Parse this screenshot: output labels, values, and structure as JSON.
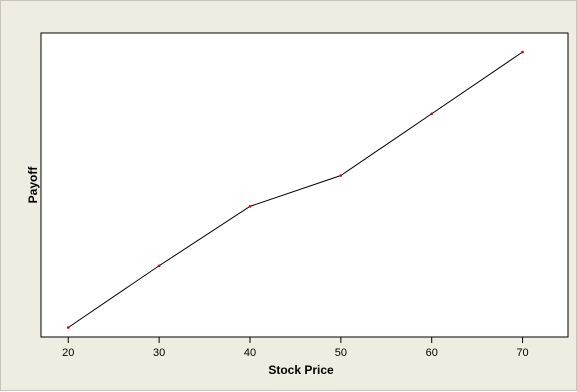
{
  "chart_data": {
    "type": "line",
    "title": "",
    "xlabel": "Stock Price",
    "ylabel": "Payoff",
    "x": [
      20,
      30,
      40,
      50,
      60,
      70
    ],
    "series": [
      {
        "values": [
          2.0,
          15.0,
          27.5,
          34.0,
          47.0,
          60.0
        ],
        "color": "#000000",
        "marker_color": "#cc0000"
      }
    ],
    "xticks": [
      20,
      30,
      40,
      50,
      60,
      70
    ],
    "xlim": [
      17,
      75
    ],
    "ylim": [
      0,
      64
    ],
    "show_yticks": false,
    "grid": false,
    "legend": "none"
  },
  "colors": {
    "figure_background": "#efede1",
    "plot_background": "#ffffff",
    "line": "#000000",
    "marker": "#cc0000"
  }
}
